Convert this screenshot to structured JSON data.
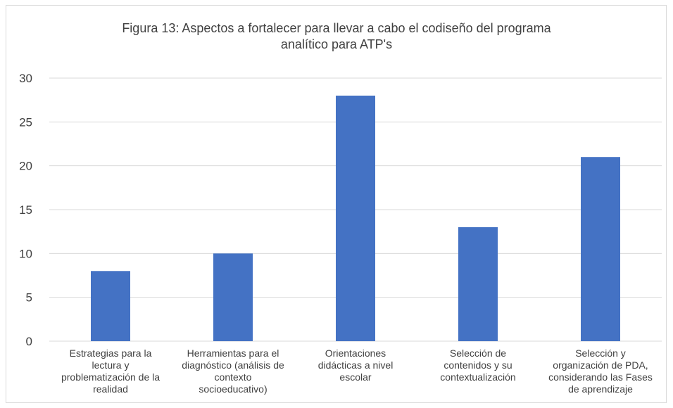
{
  "chart_data": {
    "type": "bar",
    "title_lines": [
      "Figura 13: Aspectos a fortalecer para llevar a cabo el codiseño del programa",
      "analítico para ATP's"
    ],
    "categories": [
      "Estrategias para la\nlectura y\nproblematización de la\nrealidad",
      "Herramientas para el\ndiagnóstico (análisis de\ncontexto\nsocioeducativo)",
      "Orientaciones\ndidácticas a nivel\nescolar",
      "Selección de\ncontenidos y su\ncontextualización",
      "Selección y\norganización de PDA,\nconsiderando las Fases\nde aprendizaje"
    ],
    "values": [
      8,
      10,
      28,
      13,
      21
    ],
    "ylim": [
      0,
      30
    ],
    "yticks": [
      0,
      5,
      10,
      15,
      20,
      25,
      30
    ],
    "grid": true,
    "bar_color": "#4472c4",
    "grid_color": "#d9d9d9"
  }
}
